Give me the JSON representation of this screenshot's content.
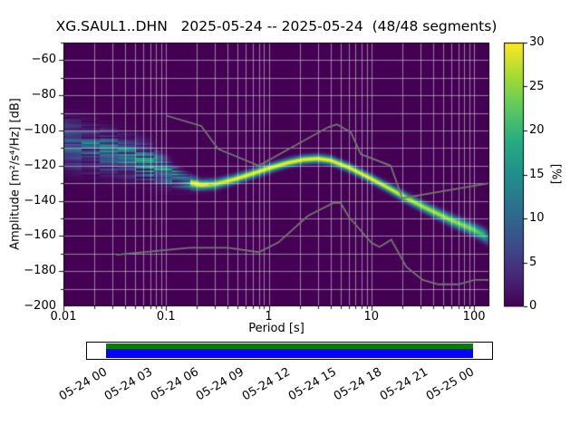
{
  "chart_data": {
    "type": "heatmap",
    "title": "XG.SAUL1..DHN   2025-05-24 -- 2025-05-24  (48/48 segments)",
    "xlabel": "Period [s]",
    "ylabel": "Amplitude [m²/s⁴/Hz] [dB]",
    "xscale": "log",
    "xlim": [
      0.01,
      141
    ],
    "ylim": [
      -200,
      -50
    ],
    "background_color": "#440154",
    "grid_color": "rgba(255,255,255,0.6)",
    "x_ticks": [
      {
        "value": 0.01,
        "label": "0.01"
      },
      {
        "value": 0.1,
        "label": "0.1"
      },
      {
        "value": 1,
        "label": "1"
      },
      {
        "value": 10,
        "label": "10"
      },
      {
        "value": 100,
        "label": "100"
      }
    ],
    "y_ticks": [
      {
        "value": -200,
        "label": "−200"
      },
      {
        "value": -180,
        "label": "−180"
      },
      {
        "value": -160,
        "label": "−160"
      },
      {
        "value": -140,
        "label": "−140"
      },
      {
        "value": -120,
        "label": "−120"
      },
      {
        "value": -100,
        "label": "−100"
      },
      {
        "value": -80,
        "label": "−80"
      },
      {
        "value": -60,
        "label": "−60"
      }
    ],
    "colorbar": {
      "label": "[%]",
      "min": 0,
      "max": 30,
      "colormap": "viridis",
      "ticks": [
        {
          "value": 0,
          "label": "0"
        },
        {
          "value": 5,
          "label": "5"
        },
        {
          "value": 10,
          "label": "10"
        },
        {
          "value": 15,
          "label": "15"
        },
        {
          "value": 20,
          "label": "20"
        },
        {
          "value": 25,
          "label": "25"
        },
        {
          "value": 30,
          "label": "30"
        }
      ]
    },
    "histogram": {
      "unit": "%",
      "periods": [
        0.01,
        0.014,
        0.02,
        0.03,
        0.05,
        0.07,
        0.09,
        0.11,
        0.14,
        0.18,
        0.22,
        0.3,
        0.45,
        0.7,
        1.0,
        1.5,
        2.2,
        3.0,
        4.0,
        6.0,
        10,
        15,
        22,
        35,
        60,
        100,
        125,
        141
      ],
      "mean_db": [
        -107,
        -109,
        -111,
        -113,
        -116,
        -119,
        -122,
        -125,
        -128,
        -130,
        -131,
        -130.5,
        -128,
        -124.5,
        -121.5,
        -118.5,
        -116.5,
        -116,
        -117,
        -121,
        -127.5,
        -133,
        -138.5,
        -144.5,
        -151,
        -156.5,
        -159.5,
        -161.5
      ],
      "spread_db": [
        8,
        8,
        7.5,
        7,
        6.5,
        6,
        5,
        4,
        3,
        2.2,
        1.8,
        1.7,
        1.6,
        1.6,
        1.6,
        1.5,
        1.5,
        1.5,
        1.5,
        1.5,
        1.5,
        1.6,
        1.7,
        1.8,
        2.0,
        2.2,
        2.4,
        2.6
      ],
      "peak_pct": [
        9,
        9,
        10,
        10,
        11,
        12,
        13,
        15,
        18,
        22,
        26,
        28,
        30,
        30,
        30,
        30,
        30,
        30,
        30,
        30,
        30,
        29,
        28,
        27,
        26,
        24,
        20,
        8
      ]
    },
    "noise_models": {
      "color": "#757575",
      "nhnm": [
        [
          0.1,
          -91.5
        ],
        [
          0.22,
          -97.4
        ],
        [
          0.32,
          -110.5
        ],
        [
          0.8,
          -120.0
        ],
        [
          3.8,
          -98.1
        ],
        [
          4.6,
          -96.5
        ],
        [
          6.3,
          -101.0
        ],
        [
          7.9,
          -113.5
        ],
        [
          15.4,
          -120.0
        ],
        [
          20,
          -138.5
        ],
        [
          141,
          -130.0
        ]
      ],
      "nlnm": [
        [
          0.033,
          -170.7
        ],
        [
          0.1,
          -168.0
        ],
        [
          0.17,
          -166.7
        ],
        [
          0.4,
          -166.7
        ],
        [
          0.8,
          -169.2
        ],
        [
          1.24,
          -163.7
        ],
        [
          2.4,
          -148.6
        ],
        [
          4.3,
          -141.1
        ],
        [
          5.0,
          -141.1
        ],
        [
          6.0,
          -149.0
        ],
        [
          10.0,
          -163.8
        ],
        [
          12.0,
          -166.2
        ],
        [
          15.6,
          -162.1
        ],
        [
          21.9,
          -177.5
        ],
        [
          31.6,
          -185.0
        ],
        [
          45.0,
          -187.5
        ],
        [
          70.0,
          -187.5
        ],
        [
          101.0,
          -185.0
        ],
        [
          141.0,
          -185.0
        ]
      ]
    }
  },
  "timeline": {
    "bar_colors": {
      "top": "#008000",
      "bottom": "#0000ff"
    },
    "tick_labels": [
      "05-24 00",
      "05-24 03",
      "05-24 06",
      "05-24 09",
      "05-24 12",
      "05-24 15",
      "05-24 18",
      "05-24 21",
      "05-25 00"
    ]
  }
}
